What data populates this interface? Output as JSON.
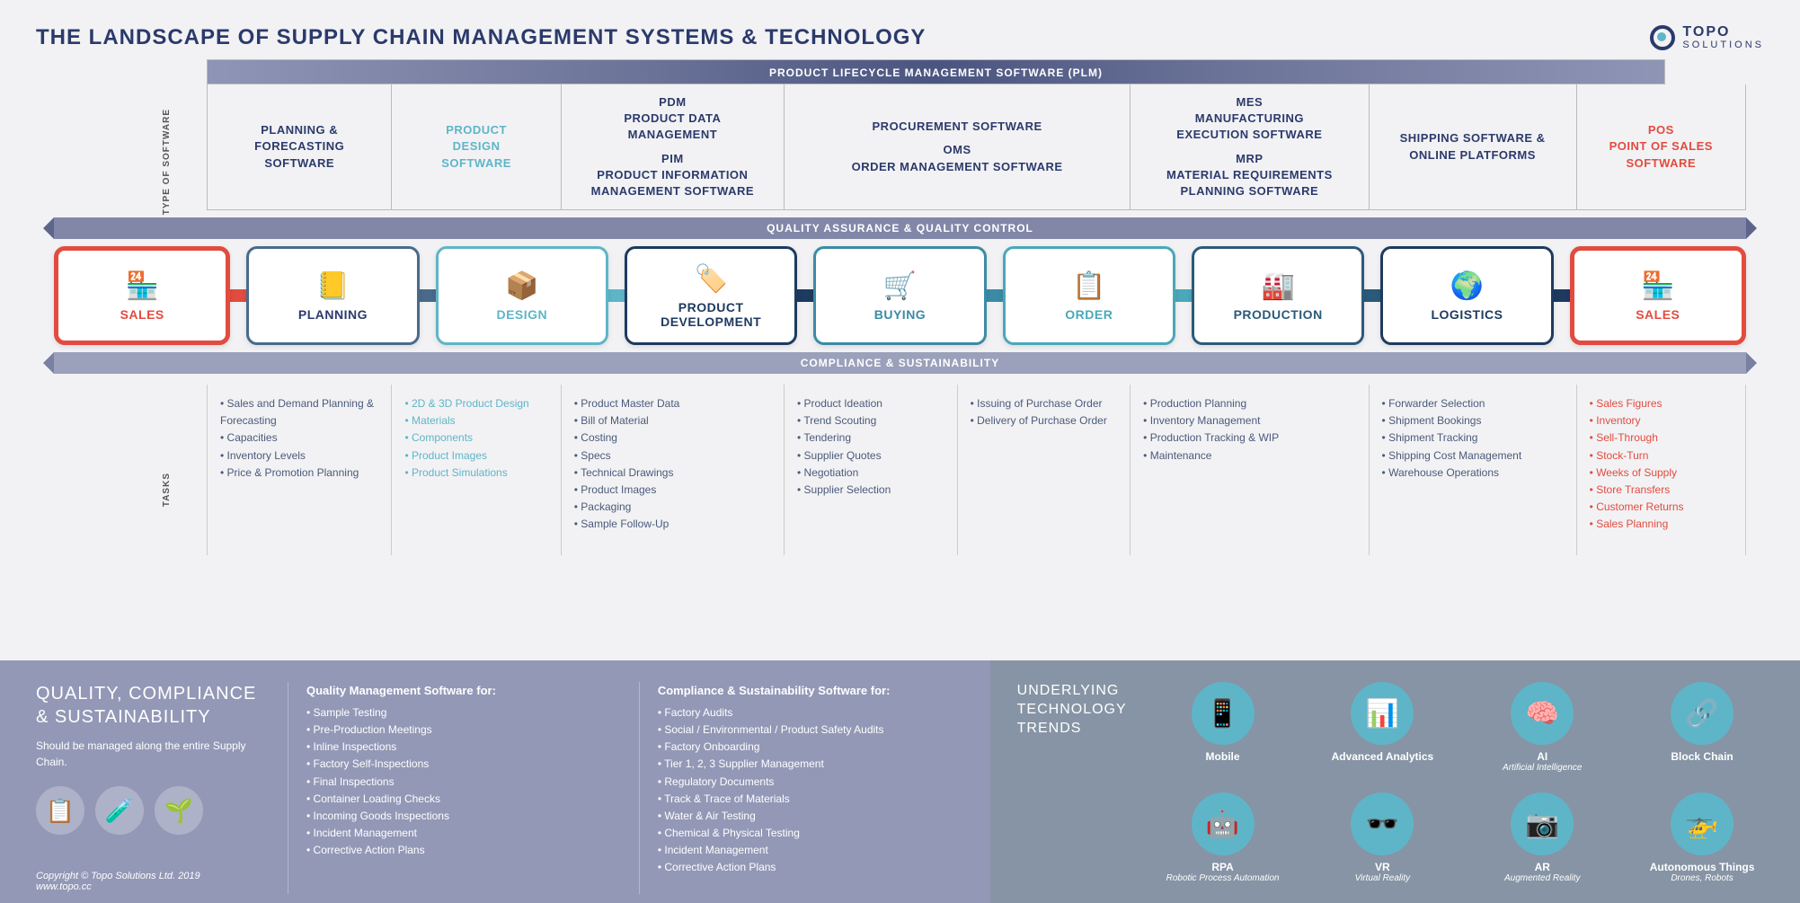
{
  "title": "THE LANDSCAPE OF SUPPLY CHAIN MANAGEMENT SYSTEMS & TECHNOLOGY",
  "logo": {
    "name": "TOPO",
    "sub": "SOLUTIONS"
  },
  "plm_bar": "PRODUCT LIFECYCLE MANAGEMENT SOFTWARE (PLM)",
  "vlabels": {
    "software": "TYPE OF SOFTWARE",
    "tasks": "TASKS"
  },
  "qa_top": "QUALITY ASSURANCE & QUALITY CONTROL",
  "qa_bottom": "COMPLIANCE & SUSTAINABILITY",
  "colors": {
    "title": "#2b3a6b",
    "bg": "#f2f2f4",
    "footer_left": "#9398b6",
    "footer_right": "#8694a5",
    "trend_circle": "#5eb5c8"
  },
  "software_cells": [
    {
      "width_pct": 12.0,
      "color": "#2b3a6b",
      "lines": [
        "PLANNING &",
        "FORECASTING",
        "SOFTWARE"
      ]
    },
    {
      "width_pct": 11.0,
      "color": "#5eb5c8",
      "lines": [
        "PRODUCT",
        "DESIGN",
        "SOFTWARE"
      ]
    },
    {
      "width_pct": 14.5,
      "color": "#2b3a6b",
      "lines": [
        "PDM",
        "PRODUCT DATA",
        "MANAGEMENT",
        "",
        "PIM",
        "PRODUCT INFORMATION",
        "MANAGEMENT SOFTWARE"
      ]
    },
    {
      "width_pct": 22.5,
      "color": "#2b3a6b",
      "lines": [
        "PROCUREMENT SOFTWARE",
        "",
        "OMS",
        "ORDER MANAGEMENT SOFTWARE"
      ]
    },
    {
      "width_pct": 15.5,
      "color": "#2b3a6b",
      "lines": [
        "MES",
        "MANUFACTURING",
        "EXECUTION SOFTWARE",
        "",
        "MRP",
        "MATERIAL REQUIREMENTS",
        "PLANNING SOFTWARE"
      ]
    },
    {
      "width_pct": 13.5,
      "color": "#2b3a6b",
      "lines": [
        "SHIPPING SOFTWARE &",
        "ONLINE PLATFORMS"
      ]
    },
    {
      "width_pct": 11.0,
      "color": "#e24b3f",
      "lines": [
        "POS",
        "POINT OF SALES",
        "SOFTWARE"
      ]
    }
  ],
  "stages": [
    {
      "label": "SALES",
      "border": "#e24b3f",
      "text": "#e24b3f",
      "icon": "🏪",
      "border_w": 5
    },
    {
      "label": "PLANNING",
      "border": "#4a6a8a",
      "text": "#2b3a6b",
      "icon": "📒",
      "border_w": 3
    },
    {
      "label": "DESIGN",
      "border": "#5eb5c8",
      "text": "#5eb5c8",
      "icon": "📦",
      "border_w": 3
    },
    {
      "label": "PRODUCT DEVELOPMENT",
      "border": "#1e3a5f",
      "text": "#1e3a5f",
      "icon": "🏷️",
      "border_w": 3
    },
    {
      "label": "BUYING",
      "border": "#3b8ba5",
      "text": "#3b8ba5",
      "icon": "🛒",
      "border_w": 3
    },
    {
      "label": "ORDER",
      "border": "#4aa8b8",
      "text": "#4aa8b8",
      "icon": "📋",
      "border_w": 3
    },
    {
      "label": "PRODUCTION",
      "border": "#2b5a7a",
      "text": "#2b5a7a",
      "icon": "🏭",
      "border_w": 3
    },
    {
      "label": "LOGISTICS",
      "border": "#1e3a5f",
      "text": "#1e3a5f",
      "icon": "🌍",
      "border_w": 3
    },
    {
      "label": "SALES",
      "border": "#e24b3f",
      "text": "#e24b3f",
      "icon": "🏪",
      "border_w": 5
    }
  ],
  "connector_colors": [
    "#e24b3f",
    "#4a6a8a",
    "#5eb5c8",
    "#1e3a5f",
    "#3b8ba5",
    "#4aa8b8",
    "#2b5a7a",
    "#1e3a5f"
  ],
  "task_cells": [
    {
      "width_pct": 12.0,
      "color": "#4a5a7a",
      "items": [
        "Sales and Demand Planning & Forecasting",
        "Capacities",
        "Inventory Levels",
        "Price & Promotion Planning"
      ]
    },
    {
      "width_pct": 11.0,
      "color": "#5eb5c8",
      "items": [
        "2D & 3D Product Design",
        "Materials",
        "Components",
        "Product Images",
        "Product Simulations"
      ]
    },
    {
      "width_pct": 14.5,
      "color": "#4a5a7a",
      "items": [
        "Product Master Data",
        "Bill of Material",
        "Costing",
        "Specs",
        "Technical Drawings",
        "Product Images",
        "Packaging",
        "Sample Follow-Up"
      ]
    },
    {
      "width_pct": 11.25,
      "color": "#4a5a7a",
      "items": [
        "Product Ideation",
        "Trend Scouting",
        "Tendering",
        "Supplier Quotes",
        "Negotiation",
        "Supplier Selection"
      ]
    },
    {
      "width_pct": 11.25,
      "color": "#4a5a7a",
      "items": [
        "Issuing of Purchase Order",
        "Delivery of Purchase Order"
      ]
    },
    {
      "width_pct": 15.5,
      "color": "#4a5a7a",
      "items": [
        "Production Planning",
        "Inventory Management",
        "Production Tracking & WIP",
        "Maintenance"
      ]
    },
    {
      "width_pct": 13.5,
      "color": "#4a5a7a",
      "items": [
        "Forwarder Selection",
        "Shipment Bookings",
        "Shipment Tracking",
        "Shipping Cost Management",
        "Warehouse Operations"
      ]
    },
    {
      "width_pct": 11.0,
      "color": "#e24b3f",
      "items": [
        "Sales Figures",
        "Inventory",
        "Sell-Through",
        "Stock-Turn",
        "Weeks of Supply",
        "Store Transfers",
        "Customer Returns",
        "Sales Planning"
      ]
    }
  ],
  "footer_left": {
    "title": "QUALITY, COMPLIANCE & SUSTAINABILITY",
    "sub": "Should be managed along the entire Supply Chain.",
    "icons": [
      "📋",
      "🧪",
      "🌱"
    ],
    "copyright": "Copyright © Topo Solutions Ltd. 2019",
    "url": "www.topo.cc",
    "lists": [
      {
        "title": "Quality Management Software for:",
        "items": [
          "Sample Testing",
          "Pre-Production Meetings",
          "Inline Inspections",
          "Factory Self-Inspections",
          "Final Inspections",
          "Container Loading Checks",
          "Incoming Goods Inspections",
          "Incident Management",
          "Corrective Action Plans"
        ]
      },
      {
        "title": "Compliance & Sustainability Software for:",
        "items": [
          "Factory Audits",
          "Social / Environmental / Product Safety Audits",
          "Factory Onboarding",
          "Tier 1, 2, 3 Supplier Management",
          "Regulatory Documents",
          "Track & Trace of Materials",
          "Water & Air Testing",
          "Chemical & Physical Testing",
          "Incident Management",
          "Corrective Action Plans"
        ]
      }
    ]
  },
  "footer_right": {
    "title1": "UNDERLYING",
    "title2": "TECHNOLOGY",
    "title3": "TRENDS",
    "trends": [
      {
        "icon": "📱",
        "label": "Mobile",
        "sub": ""
      },
      {
        "icon": "📊",
        "label": "Advanced Analytics",
        "sub": ""
      },
      {
        "icon": "🧠",
        "label": "AI",
        "sub": "Artificial Intelligence"
      },
      {
        "icon": "🔗",
        "label": "Block Chain",
        "sub": ""
      },
      {
        "icon": "🤖",
        "label": "RPA",
        "sub": "Robotic Process Automation"
      },
      {
        "icon": "🕶️",
        "label": "VR",
        "sub": "Virtual Reality"
      },
      {
        "icon": "📷",
        "label": "AR",
        "sub": "Augmented Reality"
      },
      {
        "icon": "🚁",
        "label": "Autonomous Things",
        "sub": "Drones, Robots"
      }
    ]
  }
}
